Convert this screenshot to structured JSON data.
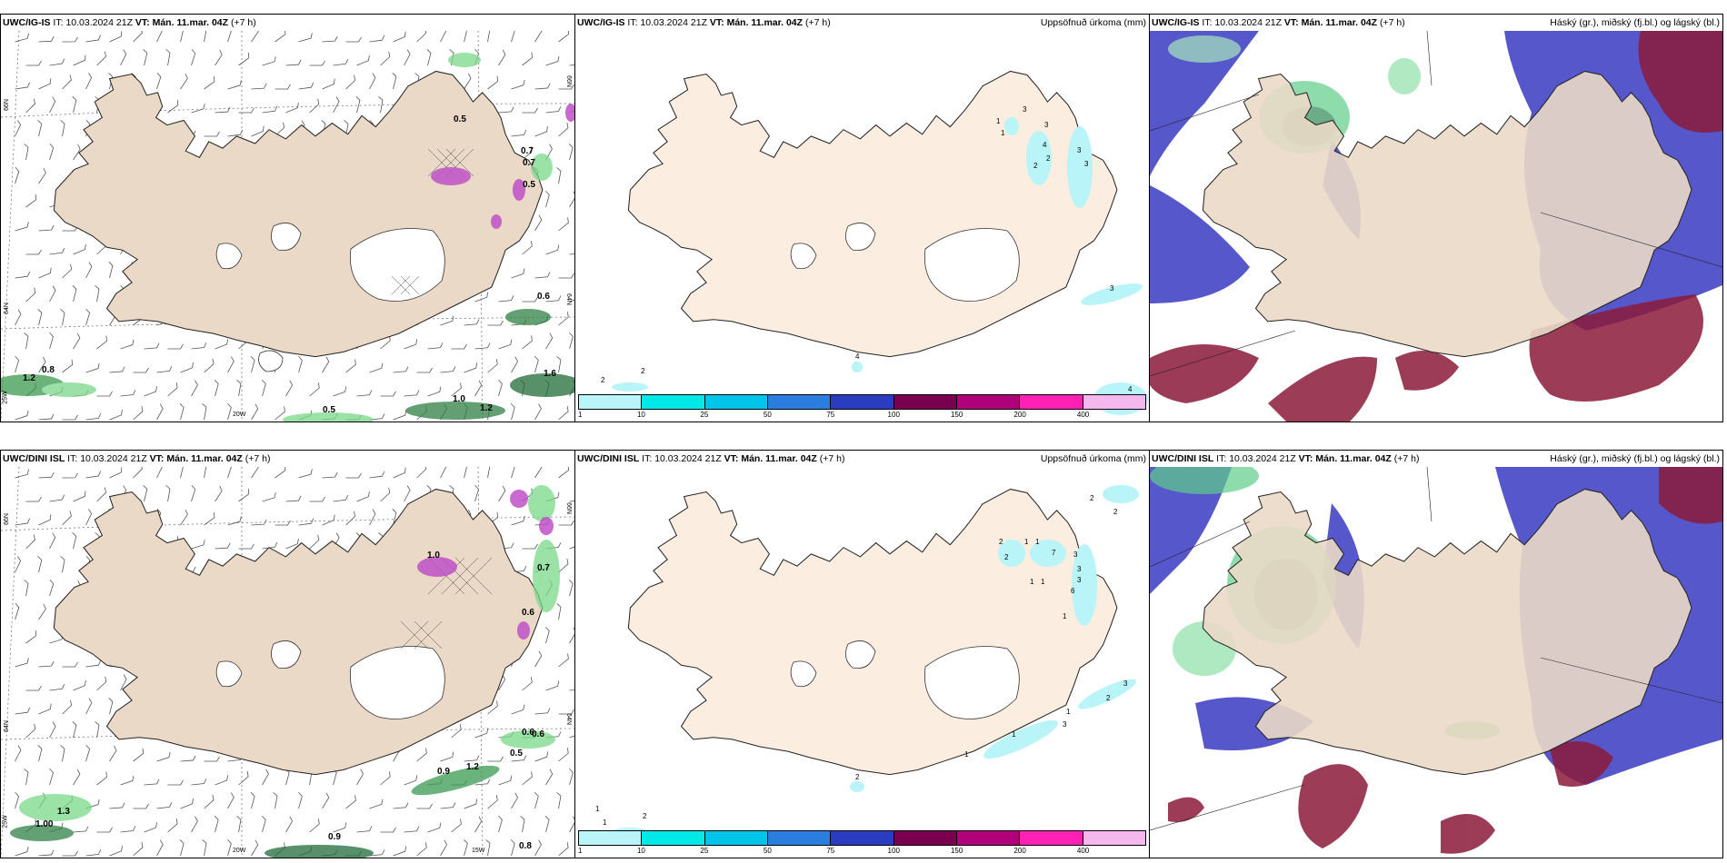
{
  "panels": [
    {
      "model": "UWC/IG-IS",
      "it_label": "IT:",
      "it_value": "10.03.2024 21Z",
      "vt_label": "VT:",
      "vt_value": "Mán. 11.mar. 04Z",
      "lead": "(+7 h)",
      "right_title": "",
      "type": "wind",
      "lat_labels": [
        "66N",
        "64N",
        "66N",
        "64N"
      ],
      "lon_labels": [
        "25W",
        "20W"
      ],
      "values": [
        "0.8",
        "1.2",
        "0.5",
        "1.0",
        "1.2",
        "1.6",
        "0.6",
        "0.7",
        "0.7",
        "0.5",
        "0.5"
      ]
    },
    {
      "model": "UWC/IG-IS",
      "it_label": "IT:",
      "it_value": "10.03.2024 21Z",
      "vt_label": "VT:",
      "vt_value": "Mán. 11.mar. 04Z",
      "lead": "(+7 h)",
      "right_title": "Uppsöfnuð úrkoma (mm)",
      "type": "precip",
      "values": [
        "1",
        "1",
        "3",
        "4",
        "2",
        "2",
        "3",
        "3",
        "3",
        "2",
        "2",
        "4",
        "3",
        "4"
      ]
    },
    {
      "model": "UWC/IG-IS",
      "it_label": "IT:",
      "it_value": "10.03.2024 21Z",
      "vt_label": "VT:",
      "vt_value": "Mán. 11.mar. 04Z",
      "lead": "(+7 h)",
      "right_title": "Háský (gr.), miðský (fj.bl.) og lágský (bl.)",
      "type": "cloud"
    },
    {
      "model": "UWC/DINI ISL",
      "it_label": "IT:",
      "it_value": "10.03.2024 21Z",
      "vt_label": "VT:",
      "vt_value": "Mán. 11.mar. 04Z",
      "lead": "(+7 h)",
      "right_title": "",
      "type": "wind",
      "lat_labels": [
        "66N",
        "64N",
        "66N",
        "64N"
      ],
      "lon_labels": [
        "25W",
        "20W",
        "15W"
      ],
      "values": [
        "1.3",
        "1.00",
        "0.9",
        "1.2",
        "0.5",
        "0.6",
        "0.6",
        "0.7",
        "0.6",
        "0.9",
        "0.8",
        "1.0"
      ]
    },
    {
      "model": "UWC/DINI ISL",
      "it_label": "IT:",
      "it_value": "10.03.2024 21Z",
      "vt_label": "VT:",
      "vt_value": "Mán. 11.mar. 04Z",
      "lead": "(+7 h)",
      "right_title": "Uppsöfnuð úrkoma (mm)",
      "type": "precip",
      "values": [
        "2",
        "2",
        "2",
        "1",
        "1",
        "2",
        "7",
        "3",
        "3",
        "1",
        "1",
        "6",
        "3",
        "1",
        "2",
        "3",
        "1",
        "3",
        "1",
        "1",
        "2",
        "1",
        "1",
        "2"
      ]
    },
    {
      "model": "UWC/DINI ISL",
      "it_label": "IT:",
      "it_value": "10.03.2024 21Z",
      "vt_label": "VT:",
      "vt_value": "Mán. 11.mar. 04Z",
      "lead": "(+7 h)",
      "right_title": "Háský (gr.), miðský (fj.bl.) og lágský (bl.)",
      "type": "cloud"
    }
  ],
  "colorbar": {
    "ticks": [
      "1",
      "10",
      "25",
      "50",
      "75",
      "100",
      "150",
      "200",
      "400"
    ],
    "colors": [
      "#b8f4f8",
      "#00e8e8",
      "#00c4e8",
      "#2c7de0",
      "#2a3cc0",
      "#78004e",
      "#b0007a",
      "#ff20b4",
      "#f5b8ee"
    ]
  },
  "map_colors": {
    "land": "#ead9c6",
    "land_light": "#fbeee0",
    "glacier": "#ffffff",
    "high_cloud": "#2e8b57",
    "mid_cloud": "#4949c8",
    "low_cloud": "#8b1a3a"
  }
}
